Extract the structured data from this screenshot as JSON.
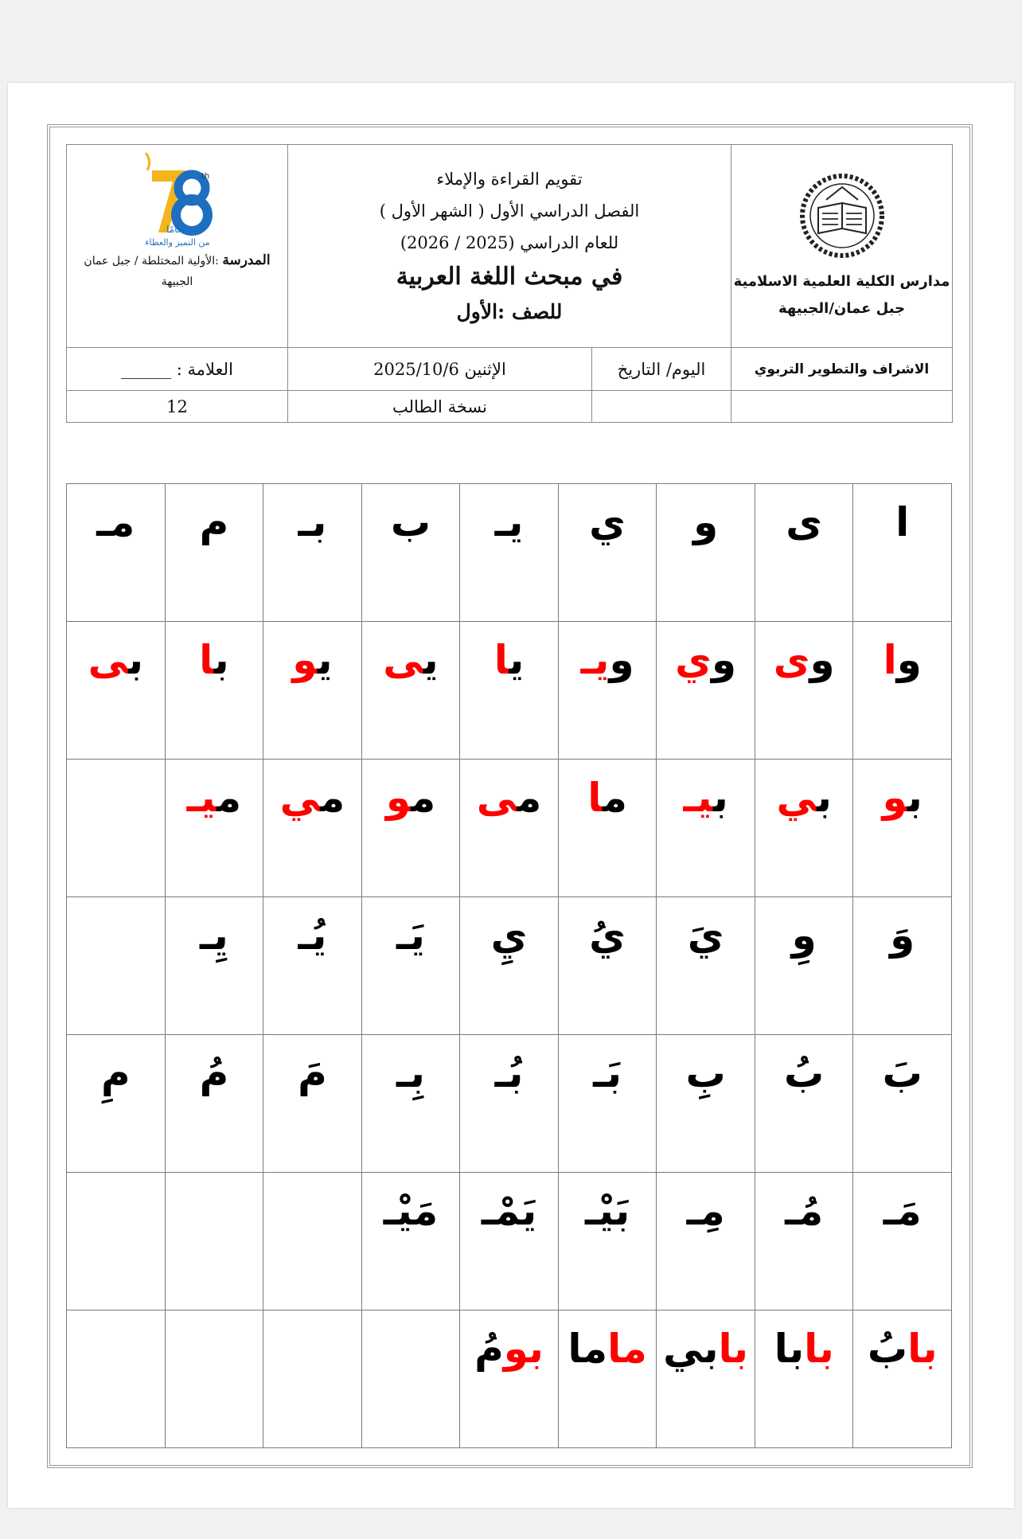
{
  "header": {
    "left_logo": {
      "text_lines": [
        "مدارس الكلية العلمية الاسلامية",
        "جبل عمان/الجبيهة"
      ]
    },
    "title_lines": [
      "تقويم  القراءة والإملاء",
      "الفصل الدراسي الأول ( الشهر الأول )",
      "للعام الدراسي (2025 / 2026)"
    ],
    "subject": "في مبحث اللغة العربية",
    "grade": "للصف :الأول",
    "anniversary_logo": {
      "number": "78",
      "suffix": "th",
      "word": "عامًا",
      "slogan": "من التميز والعطاء",
      "colors": {
        "gold": "#f2b51c",
        "blue": "#1f6fc0"
      }
    },
    "school_label": "المدرسة",
    "school_value": ":الأولية المختلطة / جبل عمان الجبيهة",
    "department": "الاشراف والتطوير التربوي",
    "date_label": "اليوم/ التاريخ",
    "date_value": "الإثنين 2025/10/6",
    "mark_label": "العلامة :",
    "mark_blank": "______",
    "copy_label": "نسخة الطالب",
    "mark_value": "12"
  },
  "colors": {
    "red": "#ff0000",
    "black": "#000000"
  },
  "grid": [
    [
      [
        {
          "t": "ا",
          "c": "black"
        }
      ],
      [
        {
          "t": "ى",
          "c": "black"
        }
      ],
      [
        {
          "t": "و",
          "c": "black"
        }
      ],
      [
        {
          "t": "ي",
          "c": "black"
        }
      ],
      [
        {
          "t": "يـ",
          "c": "black"
        }
      ],
      [
        {
          "t": "ب",
          "c": "black"
        }
      ],
      [
        {
          "t": "بـ",
          "c": "black"
        }
      ],
      [
        {
          "t": "م",
          "c": "black"
        }
      ],
      [
        {
          "t": "مـ",
          "c": "black"
        }
      ]
    ],
    [
      [
        {
          "t": "و",
          "c": "black"
        },
        {
          "t": "ا",
          "c": "red"
        }
      ],
      [
        {
          "t": "و",
          "c": "black"
        },
        {
          "t": "ى",
          "c": "red"
        }
      ],
      [
        {
          "t": "و",
          "c": "black"
        },
        {
          "t": "ي",
          "c": "red"
        }
      ],
      [
        {
          "t": "و",
          "c": "black"
        },
        {
          "t": "يـ",
          "c": "red"
        }
      ],
      [
        {
          "t": "ي",
          "c": "black"
        },
        {
          "t": "ا",
          "c": "red"
        }
      ],
      [
        {
          "t": "ي",
          "c": "black"
        },
        {
          "t": "ى",
          "c": "red"
        }
      ],
      [
        {
          "t": "ي",
          "c": "black"
        },
        {
          "t": "و",
          "c": "red"
        }
      ],
      [
        {
          "t": "ب",
          "c": "black"
        },
        {
          "t": "ا",
          "c": "red"
        }
      ],
      [
        {
          "t": "ب",
          "c": "black"
        },
        {
          "t": "ى",
          "c": "red"
        }
      ]
    ],
    [
      [
        {
          "t": "ب",
          "c": "black"
        },
        {
          "t": "و",
          "c": "red"
        }
      ],
      [
        {
          "t": "ب",
          "c": "black"
        },
        {
          "t": "ي",
          "c": "red"
        }
      ],
      [
        {
          "t": "ب",
          "c": "black"
        },
        {
          "t": "يـ",
          "c": "red"
        }
      ],
      [
        {
          "t": "م",
          "c": "black"
        },
        {
          "t": "ا",
          "c": "red"
        }
      ],
      [
        {
          "t": "م",
          "c": "black"
        },
        {
          "t": "ى",
          "c": "red"
        }
      ],
      [
        {
          "t": "م",
          "c": "black"
        },
        {
          "t": "و",
          "c": "red"
        }
      ],
      [
        {
          "t": "م",
          "c": "black"
        },
        {
          "t": "ي",
          "c": "red"
        }
      ],
      [
        {
          "t": "م",
          "c": "black"
        },
        {
          "t": "يـ",
          "c": "red"
        }
      ],
      []
    ],
    [
      [
        {
          "t": "وَ",
          "c": "black"
        }
      ],
      [
        {
          "t": "وِ",
          "c": "black"
        }
      ],
      [
        {
          "t": "يَ",
          "c": "black"
        }
      ],
      [
        {
          "t": "يُ",
          "c": "black"
        }
      ],
      [
        {
          "t": "يِ",
          "c": "black"
        }
      ],
      [
        {
          "t": "يَـ",
          "c": "black"
        }
      ],
      [
        {
          "t": "يُـ",
          "c": "black"
        }
      ],
      [
        {
          "t": "يِـ",
          "c": "black"
        }
      ],
      []
    ],
    [
      [
        {
          "t": "بَ",
          "c": "black"
        }
      ],
      [
        {
          "t": "بُ",
          "c": "black"
        }
      ],
      [
        {
          "t": "بِ",
          "c": "black"
        }
      ],
      [
        {
          "t": "بَـ",
          "c": "black"
        }
      ],
      [
        {
          "t": "بُـ",
          "c": "black"
        }
      ],
      [
        {
          "t": "بِـ",
          "c": "black"
        }
      ],
      [
        {
          "t": "مَ",
          "c": "black"
        }
      ],
      [
        {
          "t": "مُ",
          "c": "black"
        }
      ],
      [
        {
          "t": "مِ",
          "c": "black"
        }
      ]
    ],
    [
      [
        {
          "t": "مَـ",
          "c": "black"
        }
      ],
      [
        {
          "t": "مُـ",
          "c": "black"
        }
      ],
      [
        {
          "t": "مِـ",
          "c": "black"
        }
      ],
      [
        {
          "t": "بَيْـ",
          "c": "black"
        }
      ],
      [
        {
          "t": "يَمْـ",
          "c": "black"
        }
      ],
      [
        {
          "t": "مَيْـ",
          "c": "black"
        }
      ],
      [],
      [],
      []
    ],
    [
      [
        {
          "t": "با",
          "c": "red"
        },
        {
          "t": "بُ",
          "c": "black"
        }
      ],
      [
        {
          "t": "با",
          "c": "red"
        },
        {
          "t": "با",
          "c": "black"
        }
      ],
      [
        {
          "t": "با",
          "c": "red"
        },
        {
          "t": "بي",
          "c": "black"
        }
      ],
      [
        {
          "t": "ما",
          "c": "red"
        },
        {
          "t": "ما",
          "c": "black"
        }
      ],
      [
        {
          "t": "بو",
          "c": "red"
        },
        {
          "t": "مُ",
          "c": "black"
        }
      ],
      [],
      [],
      [],
      []
    ]
  ]
}
